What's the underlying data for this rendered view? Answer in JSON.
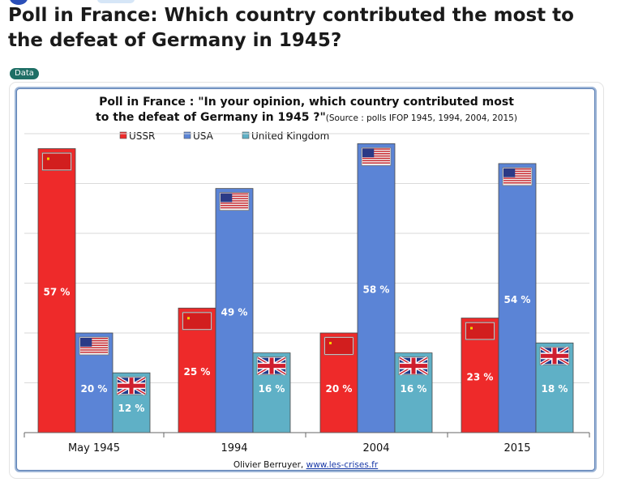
{
  "post": {
    "title": "Poll in France: Which country contributed the most to the defeat of Germany in 1945?",
    "badge": "Data"
  },
  "colors": {
    "USSR": "#ee2a2a",
    "USA": "#5b84d6",
    "United Kingdom": "#5fb0c6",
    "frame": "#9db5d6",
    "badge": "#1f6f66"
  },
  "chart_data": {
    "type": "bar",
    "title_line1": "Poll in France : \"In your opinion, which country contributed most",
    "title_line2": "to the defeat of Germany in 1945 ?\"",
    "source": "(Source : polls IFOP 1945, 1994, 2004, 2015)",
    "categories": [
      "May 1945",
      "1994",
      "2004",
      "2015"
    ],
    "series": [
      {
        "name": "USSR",
        "values": [
          57,
          25,
          20,
          23
        ],
        "labels": [
          "57 %",
          "25 %",
          "20 %",
          "23 %"
        ],
        "flag": "ussr-flag"
      },
      {
        "name": "USA",
        "values": [
          20,
          49,
          58,
          54
        ],
        "labels": [
          "20 %",
          "49 %",
          "58 %",
          "54 %"
        ],
        "flag": "usa-flag"
      },
      {
        "name": "United Kingdom",
        "values": [
          12,
          16,
          16,
          18
        ],
        "labels": [
          "12 %",
          "16 %",
          "16 %",
          "18 %"
        ],
        "flag": "uk-flag"
      }
    ],
    "ylim": [
      0,
      60
    ],
    "grid": true,
    "legend": "top",
    "credit_author": "Olivier Berruyer,",
    "credit_link": "www.les-crises.fr"
  }
}
